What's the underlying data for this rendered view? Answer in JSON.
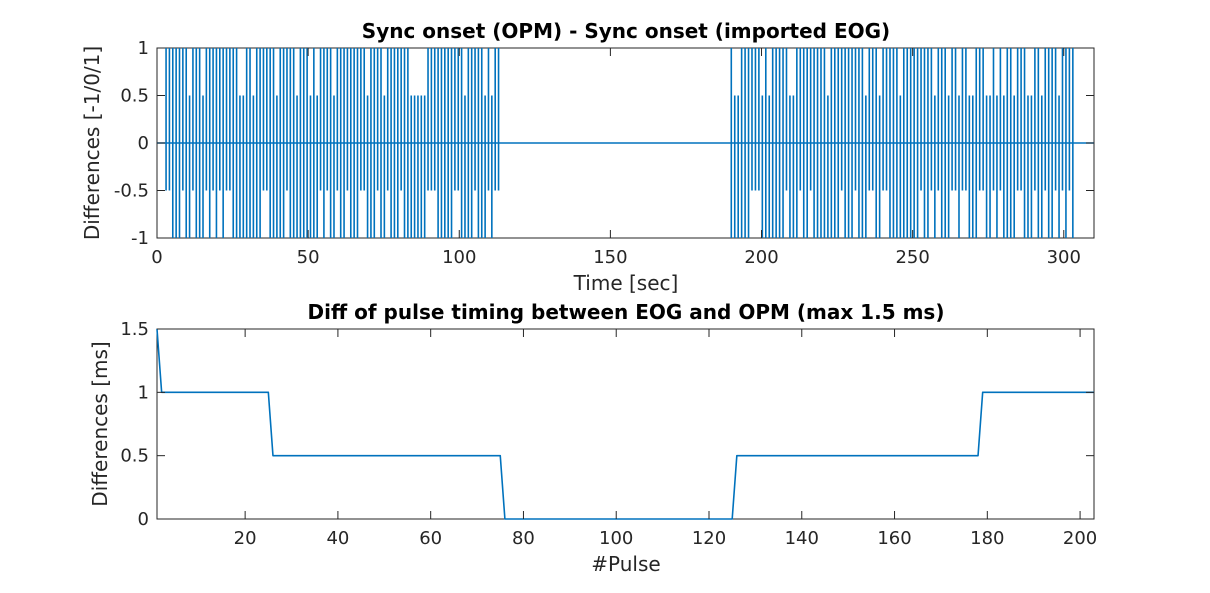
{
  "colors": {
    "series": "#0072BD",
    "axes": "#262626",
    "background": "#ffffff"
  },
  "chart_data": [
    {
      "type": "line",
      "title": "Sync onset (OPM) - Sync onset (imported EOG)",
      "xlabel": "Time [sec]",
      "ylabel": "Differences [-1/0/1]",
      "xlim": [
        0,
        310
      ],
      "ylim": [
        -1,
        1
      ],
      "xticks": [
        0,
        50,
        100,
        150,
        200,
        250,
        300
      ],
      "yticks": [
        -1,
        -0.5,
        0,
        0.5,
        1
      ],
      "xtick_labels": [
        "0",
        "50",
        "100",
        "150",
        "200",
        "250",
        "300"
      ],
      "ytick_labels": [
        "-1",
        "-0.5",
        "0",
        "0.5",
        "1"
      ],
      "grid": false,
      "series": [
        {
          "baseline": 0,
          "pulse_groups": [
            {
              "start": 3,
              "end": 113,
              "count": 100
            },
            {
              "start": 190,
              "end": 303,
              "count": 100
            }
          ]
        }
      ]
    },
    {
      "type": "line",
      "title": "Diff of pulse timing between EOG and OPM (max 1.5 ms)",
      "xlabel": "#Pulse",
      "ylabel": "Differences [ms]",
      "xlim": [
        1,
        203
      ],
      "ylim": [
        0,
        1.5
      ],
      "xticks": [
        20,
        40,
        60,
        80,
        100,
        120,
        140,
        160,
        180,
        200
      ],
      "yticks": [
        0,
        0.5,
        1,
        1.5
      ],
      "xtick_labels": [
        "20",
        "40",
        "60",
        "80",
        "100",
        "120",
        "140",
        "160",
        "180",
        "200"
      ],
      "ytick_labels": [
        "0",
        "0.5",
        "1",
        "1.5"
      ],
      "grid": false,
      "series": [
        {
          "x": [
            1,
            2,
            25,
            26,
            75,
            76,
            125,
            126,
            178,
            179,
            203
          ],
          "y": [
            1.5,
            1,
            1,
            0.5,
            0.5,
            0,
            0,
            0.5,
            0.5,
            1,
            1
          ]
        }
      ]
    }
  ]
}
